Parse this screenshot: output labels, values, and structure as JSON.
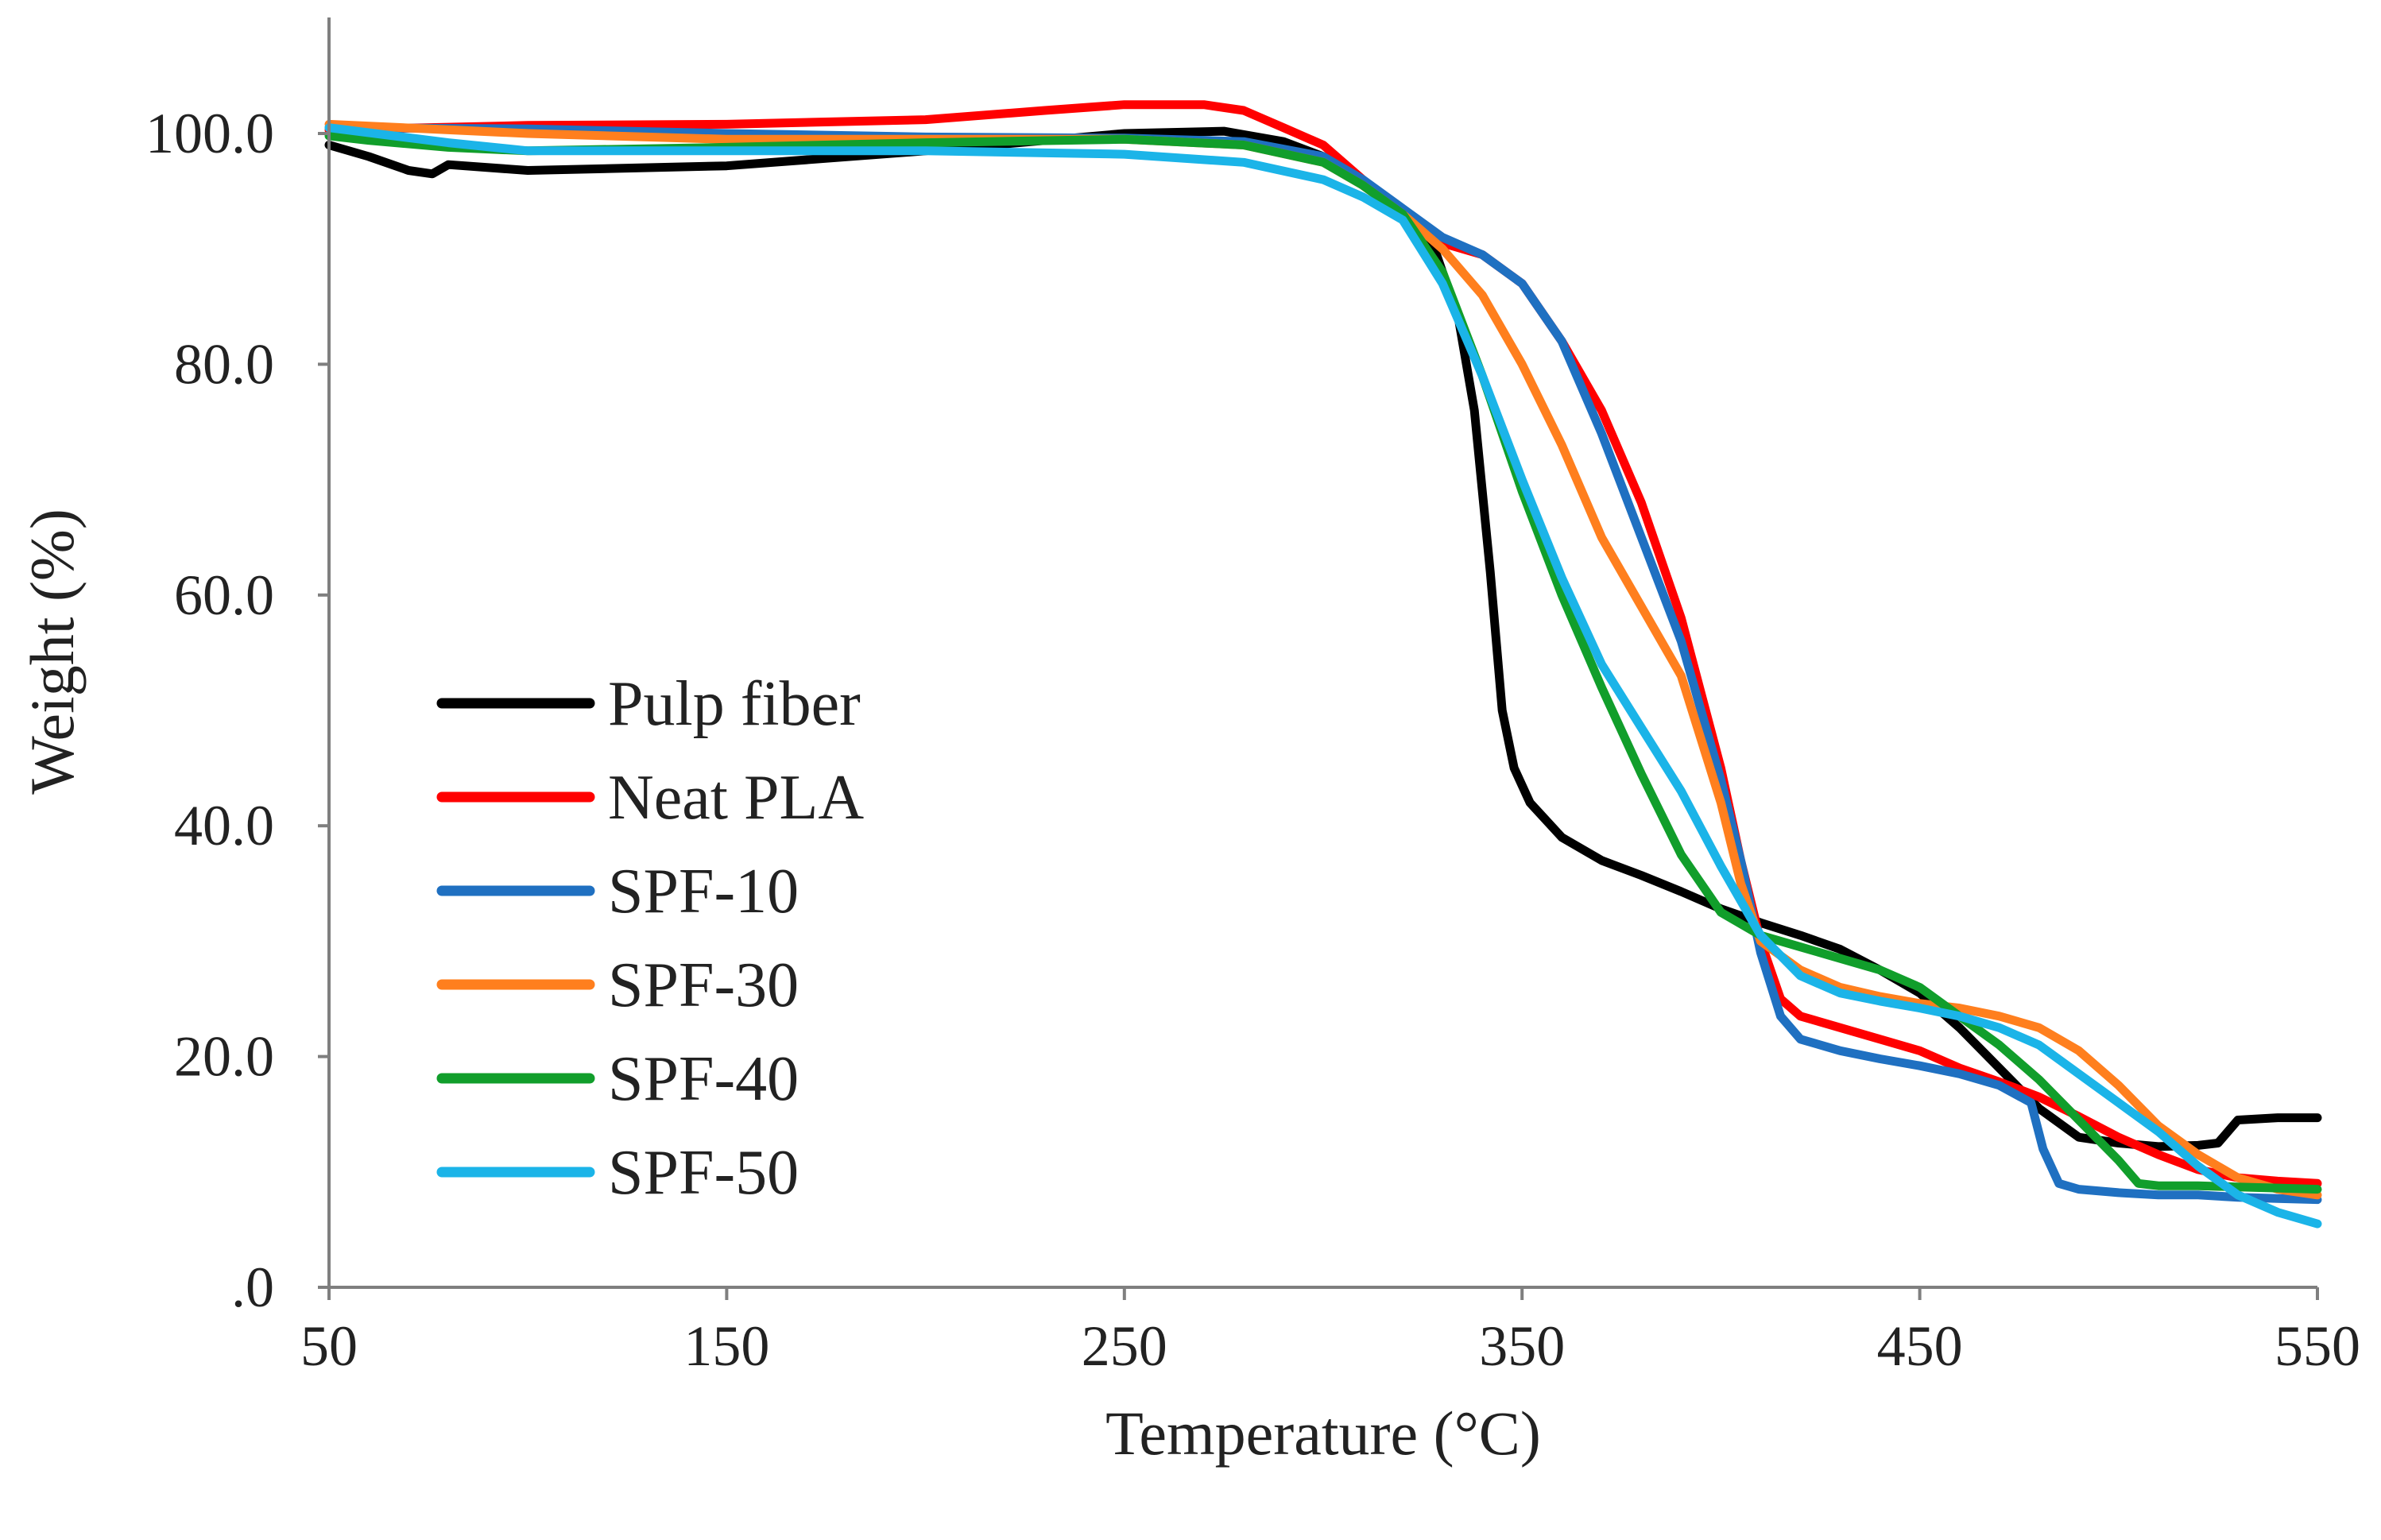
{
  "chart_data": {
    "type": "line",
    "title": "",
    "xlabel": "Temperature (°C)",
    "ylabel": "Weight (%)",
    "xlim": [
      50,
      550
    ],
    "ylim": [
      0,
      110
    ],
    "x_ticks": [
      50,
      150,
      250,
      350,
      450,
      550
    ],
    "x_tick_labels": [
      "50",
      "150",
      "250",
      "350",
      "450",
      "550"
    ],
    "y_ticks": [
      0,
      20,
      40,
      60,
      80,
      100
    ],
    "y_tick_labels": [
      ".0",
      "20.0",
      "40.0",
      "60.0",
      "80.0",
      "100.0"
    ],
    "grid": false,
    "legend_position": "left",
    "series": [
      {
        "name": "Pulp fiber",
        "color": "#000000",
        "points": [
          [
            50,
            99
          ],
          [
            60,
            98
          ],
          [
            70,
            96.8
          ],
          [
            76,
            96.5
          ],
          [
            80,
            97.3
          ],
          [
            100,
            96.8
          ],
          [
            150,
            97.2
          ],
          [
            200,
            98.5
          ],
          [
            250,
            100
          ],
          [
            275,
            100.2
          ],
          [
            290,
            99.3
          ],
          [
            300,
            98
          ],
          [
            310,
            95.5
          ],
          [
            320,
            93
          ],
          [
            328,
            90
          ],
          [
            334,
            84
          ],
          [
            338,
            76
          ],
          [
            342,
            62
          ],
          [
            345,
            50
          ],
          [
            348,
            45
          ],
          [
            352,
            42
          ],
          [
            360,
            39
          ],
          [
            370,
            37
          ],
          [
            380,
            35.7
          ],
          [
            390,
            34.3
          ],
          [
            400,
            32.8
          ],
          [
            410,
            31.6
          ],
          [
            420,
            30.5
          ],
          [
            430,
            29.3
          ],
          [
            440,
            27.5
          ],
          [
            450,
            25.5
          ],
          [
            460,
            22.5
          ],
          [
            470,
            19
          ],
          [
            480,
            15.5
          ],
          [
            490,
            13
          ],
          [
            500,
            12.5
          ],
          [
            510,
            12.2
          ],
          [
            520,
            12.3
          ],
          [
            525,
            12.5
          ],
          [
            530,
            14.5
          ],
          [
            540,
            14.7
          ],
          [
            550,
            14.7
          ]
        ]
      },
      {
        "name": "Neat PLA",
        "color": "#ff0000",
        "points": [
          [
            50,
            100.3
          ],
          [
            100,
            100.7
          ],
          [
            150,
            100.8
          ],
          [
            200,
            101.2
          ],
          [
            230,
            102
          ],
          [
            250,
            102.5
          ],
          [
            270,
            102.5
          ],
          [
            280,
            102
          ],
          [
            290,
            100.5
          ],
          [
            300,
            99
          ],
          [
            310,
            96
          ],
          [
            320,
            93
          ],
          [
            330,
            90.5
          ],
          [
            340,
            89.5
          ],
          [
            350,
            87
          ],
          [
            360,
            82
          ],
          [
            370,
            76
          ],
          [
            380,
            68
          ],
          [
            390,
            58
          ],
          [
            400,
            45
          ],
          [
            405,
            37
          ],
          [
            410,
            30
          ],
          [
            415,
            25
          ],
          [
            420,
            23.5
          ],
          [
            430,
            22.5
          ],
          [
            440,
            21.5
          ],
          [
            450,
            20.5
          ],
          [
            460,
            19
          ],
          [
            470,
            17.8
          ],
          [
            480,
            16.5
          ],
          [
            490,
            14.8
          ],
          [
            500,
            13
          ],
          [
            510,
            11.5
          ],
          [
            520,
            10.2
          ],
          [
            530,
            9.5
          ],
          [
            540,
            9.2
          ],
          [
            550,
            9
          ]
        ]
      },
      {
        "name": "SPF-10",
        "color": "#1f70c1",
        "points": [
          [
            50,
            100.5
          ],
          [
            100,
            100.4
          ],
          [
            150,
            100
          ],
          [
            200,
            99.7
          ],
          [
            250,
            99.6
          ],
          [
            280,
            99.3
          ],
          [
            300,
            98
          ],
          [
            310,
            96
          ],
          [
            320,
            93.5
          ],
          [
            330,
            91
          ],
          [
            340,
            89.5
          ],
          [
            350,
            87
          ],
          [
            360,
            82
          ],
          [
            370,
            74
          ],
          [
            380,
            65
          ],
          [
            390,
            56
          ],
          [
            400,
            44
          ],
          [
            405,
            37
          ],
          [
            410,
            29
          ],
          [
            415,
            23.5
          ],
          [
            420,
            21.5
          ],
          [
            430,
            20.5
          ],
          [
            440,
            19.8
          ],
          [
            450,
            19.2
          ],
          [
            460,
            18.5
          ],
          [
            470,
            17.5
          ],
          [
            478,
            16
          ],
          [
            481,
            12
          ],
          [
            485,
            9
          ],
          [
            490,
            8.5
          ],
          [
            500,
            8.2
          ],
          [
            510,
            8
          ],
          [
            520,
            8
          ],
          [
            530,
            7.8
          ],
          [
            540,
            7.7
          ],
          [
            550,
            7.6
          ]
        ]
      },
      {
        "name": "SPF-30",
        "color": "#ff7f1e",
        "points": [
          [
            50,
            100.8
          ],
          [
            100,
            100
          ],
          [
            150,
            99.5
          ],
          [
            200,
            99.5
          ],
          [
            250,
            99.5
          ],
          [
            280,
            99
          ],
          [
            300,
            97.5
          ],
          [
            310,
            95.5
          ],
          [
            320,
            93
          ],
          [
            330,
            90
          ],
          [
            340,
            86
          ],
          [
            350,
            80
          ],
          [
            360,
            73
          ],
          [
            370,
            65
          ],
          [
            380,
            59
          ],
          [
            390,
            53
          ],
          [
            400,
            42
          ],
          [
            405,
            35
          ],
          [
            410,
            30
          ],
          [
            420,
            27.5
          ],
          [
            430,
            26
          ],
          [
            440,
            25.2
          ],
          [
            450,
            24.6
          ],
          [
            460,
            24.2
          ],
          [
            470,
            23.5
          ],
          [
            480,
            22.5
          ],
          [
            490,
            20.5
          ],
          [
            500,
            17.5
          ],
          [
            510,
            14
          ],
          [
            520,
            11.5
          ],
          [
            530,
            9.5
          ],
          [
            540,
            8.5
          ],
          [
            550,
            8
          ]
        ]
      },
      {
        "name": "SPF-40",
        "color": "#119e2b",
        "points": [
          [
            50,
            99.8
          ],
          [
            60,
            99.4
          ],
          [
            80,
            98.8
          ],
          [
            100,
            98.5
          ],
          [
            150,
            98.8
          ],
          [
            200,
            99.2
          ],
          [
            250,
            99.5
          ],
          [
            280,
            99
          ],
          [
            300,
            97.5
          ],
          [
            310,
            95.5
          ],
          [
            320,
            93
          ],
          [
            330,
            88
          ],
          [
            340,
            79
          ],
          [
            350,
            69
          ],
          [
            360,
            60
          ],
          [
            370,
            52
          ],
          [
            380,
            44.5
          ],
          [
            390,
            37.5
          ],
          [
            400,
            32.5
          ],
          [
            410,
            30.5
          ],
          [
            420,
            29.5
          ],
          [
            430,
            28.5
          ],
          [
            440,
            27.5
          ],
          [
            450,
            26
          ],
          [
            460,
            23.5
          ],
          [
            470,
            21
          ],
          [
            480,
            18
          ],
          [
            490,
            14.5
          ],
          [
            500,
            11
          ],
          [
            505,
            9
          ],
          [
            510,
            8.8
          ],
          [
            520,
            8.8
          ],
          [
            530,
            8.7
          ],
          [
            540,
            8.6
          ],
          [
            550,
            8.5
          ]
        ]
      },
      {
        "name": "SPF-50",
        "color": "#1bb4e8",
        "points": [
          [
            50,
            100.5
          ],
          [
            80,
            99.2
          ],
          [
            100,
            98.5
          ],
          [
            150,
            98.5
          ],
          [
            200,
            98.5
          ],
          [
            250,
            98.2
          ],
          [
            280,
            97.5
          ],
          [
            300,
            96
          ],
          [
            310,
            94.5
          ],
          [
            320,
            92.5
          ],
          [
            330,
            87
          ],
          [
            340,
            79
          ],
          [
            350,
            70
          ],
          [
            360,
            61.5
          ],
          [
            370,
            54
          ],
          [
            380,
            48.5
          ],
          [
            390,
            43
          ],
          [
            400,
            36.5
          ],
          [
            410,
            30.5
          ],
          [
            420,
            27
          ],
          [
            430,
            25.5
          ],
          [
            440,
            24.8
          ],
          [
            450,
            24.2
          ],
          [
            460,
            23.5
          ],
          [
            470,
            22.5
          ],
          [
            480,
            21
          ],
          [
            490,
            18.5
          ],
          [
            500,
            16
          ],
          [
            510,
            13.5
          ],
          [
            520,
            10.5
          ],
          [
            530,
            8
          ],
          [
            540,
            6.5
          ],
          [
            550,
            5.5
          ]
        ]
      }
    ]
  }
}
